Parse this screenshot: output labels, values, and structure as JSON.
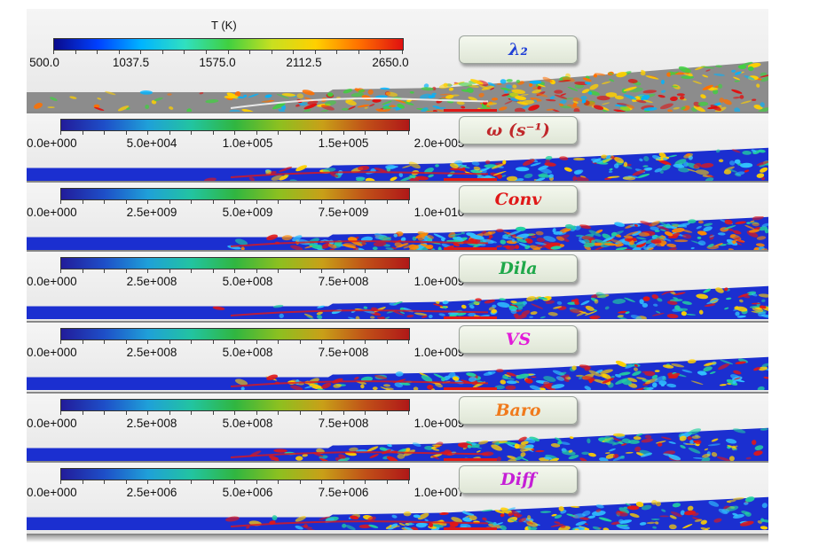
{
  "figure": {
    "panels": [
      {
        "id": "temperature",
        "badge": "λ₂",
        "badge_color": "#1f3fd6",
        "colorbar_title": "T (K)",
        "ticks": [
          "500.0",
          "1037.5",
          "1575.0",
          "2112.5",
          "2650.0"
        ],
        "colormap": "jet"
      },
      {
        "id": "vorticity",
        "badge": "ω (s⁻¹)",
        "badge_color": "#c0282b",
        "colorbar_title": "",
        "ticks": [
          "0.0e+000",
          "5.0e+004",
          "1.0e+005",
          "1.5e+005",
          "2.0e+005"
        ],
        "colormap": "rainbow"
      },
      {
        "id": "convection",
        "badge": "Conv",
        "badge_color": "#e01818",
        "colorbar_title": "",
        "ticks": [
          "0.0e+000",
          "2.5e+009",
          "5.0e+009",
          "7.5e+009",
          "1.0e+010"
        ],
        "colormap": "rainbow"
      },
      {
        "id": "dilatation",
        "badge": "Dila",
        "badge_color": "#1fa84a",
        "colorbar_title": "",
        "ticks": [
          "0.0e+000",
          "2.5e+008",
          "5.0e+008",
          "7.5e+008",
          "1.0e+009"
        ],
        "colormap": "rainbow"
      },
      {
        "id": "vortex-stretching",
        "badge": "VS",
        "badge_color": "#e21ad8",
        "colorbar_title": "",
        "ticks": [
          "0.0e+000",
          "2.5e+008",
          "5.0e+008",
          "7.5e+008",
          "1.0e+009"
        ],
        "colormap": "rainbow"
      },
      {
        "id": "baroclinic",
        "badge": "Baro",
        "badge_color": "#f07a1c",
        "colorbar_title": "",
        "ticks": [
          "0.0e+000",
          "2.5e+008",
          "5.0e+008",
          "7.5e+008",
          "1.0e+009"
        ],
        "colormap": "rainbow"
      },
      {
        "id": "diffusion",
        "badge": "Diff",
        "badge_color": "#c51ed6",
        "colorbar_title": "",
        "ticks": [
          "0.0e+000",
          "2.5e+006",
          "5.0e+006",
          "7.5e+006",
          "1.0e+007"
        ],
        "colormap": "rainbow"
      }
    ]
  }
}
